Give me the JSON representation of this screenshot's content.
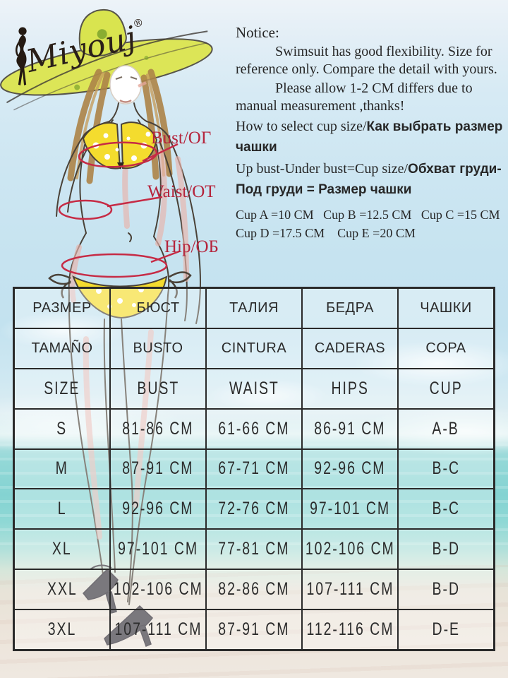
{
  "brand": {
    "name": "Miyouj",
    "registered_mark": "®"
  },
  "figure_labels": {
    "bust": "Bust/ОГ",
    "waist": "Waist/ОТ",
    "hip": "Hip/ОБ"
  },
  "notice": {
    "title": "Notice:",
    "paragraph1": "Swimsuit has good flexibility. Size for reference only. Compare the detail with yours.",
    "paragraph2": "Please allow 1-2 CM differs due to manual measurement ,thanks!",
    "cup_select_en": "How to select cup size/",
    "cup_select_ru": "Как выбрать размер чашки",
    "cup_formula_en": "Up bust-Under bust=Cup size/",
    "cup_formula_ru": "Обхват груди-Под груди = Размер чашки",
    "cup_values_line1": "Cup A =10 CM   Cup B =12.5 CM   Cup C =15 CM",
    "cup_values_line2": "Cup D =17.5 CM    Cup E =20 CM"
  },
  "size_table": {
    "header_rows": [
      [
        "РАЗМЕР",
        "БЮСТ",
        "ТАЛИЯ",
        "БЕДРА",
        "ЧАШКИ"
      ],
      [
        "TAMAÑO",
        "BUSTO",
        "CINTURA",
        "CADERAS",
        "COPA"
      ],
      [
        "SIZE",
        "BUST",
        "WAIST",
        "HIPS",
        "CUP"
      ]
    ],
    "rows": [
      [
        "S",
        "81-86 CM",
        "61-66 CM",
        "86-91 CM",
        "A-B"
      ],
      [
        "M",
        "87-91 CM",
        "67-71 CM",
        "92-96 CM",
        "B-C"
      ],
      [
        "L",
        "92-96 CM",
        "72-76 CM",
        "97-101 CM",
        "B-C"
      ],
      [
        "XL",
        "97-101 CM",
        "77-81 CM",
        "102-106 CM",
        "B-D"
      ],
      [
        "XXL",
        "102-106 CM",
        "82-86 CM",
        "107-111 CM",
        "B-D"
      ],
      [
        "3XL",
        "107-111 CM",
        "87-91 CM",
        "112-116 CM",
        "D-E"
      ]
    ]
  },
  "colors": {
    "accent_red": "#c62b45",
    "bikini_yellow": "#f4dc2e",
    "hat_yellow_green": "#d9e44f",
    "sea_turquoise": "#86d4d3",
    "sky_blue": "#c3e2ef",
    "sand": "#ece4da"
  }
}
